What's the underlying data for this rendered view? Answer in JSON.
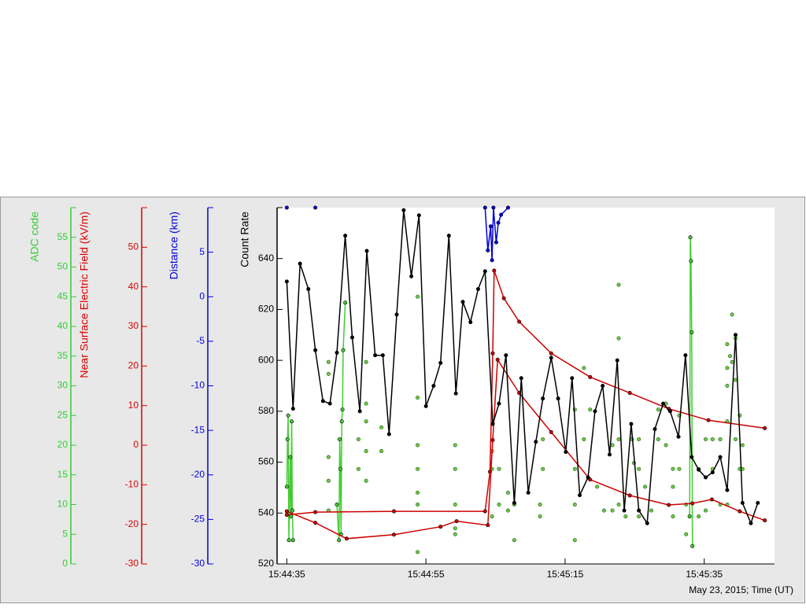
{
  "chart_data": {
    "type": "multi-axis",
    "xlabel": "May 23, 2015; Time (UT)",
    "xlim": [
      -1.4,
      70.1
    ],
    "xticks": [
      {
        "value": 0,
        "label": "15:44:35"
      },
      {
        "value": 20,
        "label": "15:44:55"
      },
      {
        "value": 40,
        "label": "15:45:15"
      },
      {
        "value": 60,
        "label": "15:45:35"
      }
    ],
    "axes": [
      {
        "label": "ADC code",
        "color": "#33cc33",
        "ylim": [
          0,
          60
        ],
        "yticks": [
          0,
          5,
          10,
          15,
          20,
          25,
          30,
          35,
          40,
          45,
          50,
          55
        ]
      },
      {
        "label": "Near Surface Electric Field (kV/m)",
        "color": "#dd0000",
        "ylim": [
          -30,
          60
        ],
        "yticks": [
          -30,
          -20,
          -10,
          0,
          10,
          20,
          30,
          40,
          50
        ]
      },
      {
        "label": "Distance (km)",
        "color": "#0000dd",
        "ylim": [
          -30,
          10
        ],
        "yticks": [
          -30,
          -25,
          -20,
          -15,
          -10,
          -5,
          0,
          5
        ]
      },
      {
        "label": "Count Rate",
        "color": "#000000",
        "ylim": [
          520,
          660
        ],
        "yticks": [
          520,
          540,
          560,
          580,
          600,
          620,
          640
        ]
      }
    ],
    "series": [
      {
        "axis": 0,
        "type": "scatter",
        "color": "#66cc44",
        "x": [
          6.0,
          6.0,
          6.0,
          6.0,
          6.0,
          10.3,
          10.3,
          11.4,
          11.4,
          11.4,
          11.4,
          11.4,
          13.6,
          13.6,
          18.8,
          18.8,
          18.8,
          18.8,
          18.8,
          18.8,
          18.8,
          24.2,
          24.2,
          24.2,
          24.2,
          24.2,
          29.5,
          29.5,
          29.5,
          30.5,
          30.5,
          31.8,
          31.8,
          32.7,
          32.7,
          36.4,
          36.4,
          36.8,
          36.8,
          41.4,
          41.4,
          41.4,
          41.4,
          42.7,
          42.7,
          43.6,
          44.6,
          45.6,
          46.8,
          46.8,
          47.7,
          47.7,
          47.7,
          47.7,
          48.7,
          49.6,
          49.9,
          50.6,
          50.6,
          50.6,
          51.5,
          52.4,
          53.4,
          53.4,
          54.5,
          54.5,
          55.5,
          55.5,
          55.5,
          56.4,
          56.4,
          57.4,
          57.4,
          59.2,
          59.2,
          60.2,
          60.2,
          61.2,
          61.2,
          62.3,
          62.3,
          63.3,
          63.3,
          63.3,
          63.3,
          63.3,
          63.7,
          64.0,
          64.0,
          64.5,
          64.5,
          64.5,
          65.1,
          65.1,
          65.5,
          65.5
        ],
        "values": [
          34,
          32,
          18,
          14,
          9,
          21,
          16,
          34,
          27,
          24,
          19,
          14,
          23,
          19,
          45,
          28,
          20,
          16,
          12,
          2,
          10,
          20,
          16,
          10,
          6,
          5,
          19,
          16,
          8,
          16,
          10,
          12,
          9,
          10,
          4,
          10,
          8,
          21,
          16,
          26,
          16,
          10,
          4,
          33,
          21,
          26,
          13,
          9,
          20,
          9,
          47,
          38,
          21,
          10,
          8,
          21,
          17,
          21,
          16,
          8,
          13,
          9,
          26,
          21,
          27,
          20,
          16,
          13,
          8,
          25,
          16,
          10,
          5,
          16,
          8,
          21,
          9,
          21,
          16,
          21,
          10,
          37,
          33,
          30,
          24,
          10,
          35,
          42,
          34,
          38,
          31,
          21,
          25,
          16,
          20,
          16
        ]
      },
      {
        "axis": 0,
        "type": "line",
        "color": "#44cc33",
        "x": [
          0,
          0.1,
          0.2,
          0.3,
          0.5,
          0.6,
          0.7,
          0.8,
          0.9,
          4,
          7.2,
          7.5,
          7.6,
          7.7,
          7.8,
          7.9,
          8.0,
          8.1,
          8.4,
          33,
          57.9,
          58.0,
          58.1,
          58.2,
          58.3
        ],
        "values": [
          13,
          21,
          25,
          4,
          18,
          8,
          24,
          9,
          4,
          null,
          10,
          4,
          21,
          16,
          5,
          24,
          26,
          36,
          44,
          null,
          8,
          55,
          51,
          39,
          3
        ]
      },
      {
        "axis": 1,
        "type": "line",
        "color": "#cc0000",
        "x": [
          0,
          4.1,
          15.4,
          28.5,
          29.2,
          29.6,
          29.8,
          31.2,
          33.4,
          38.0,
          43.6,
          49.3,
          54.9,
          60.6,
          68.7
        ],
        "values": [
          -17.6,
          -16.9,
          -16.7,
          -16.7,
          -6.7,
          23.2,
          44.1,
          37.1,
          31.2,
          23.2,
          17.2,
          13.2,
          9.2,
          6.3,
          4.3
        ]
      },
      {
        "axis": 1,
        "type": "line",
        "color": "#cc0000",
        "x": [
          0,
          4.1,
          8.6,
          15.4,
          22.1,
          24.4,
          28.9,
          29.6,
          30.3,
          33.4,
          38.0,
          43.6,
          49.3,
          54.9,
          58.3,
          61.1,
          65.1,
          68.7
        ],
        "values": [
          -16.7,
          -19.6,
          -23.6,
          -22.6,
          -20.6,
          -19.2,
          -20.2,
          1.3,
          21.6,
          13.2,
          3.3,
          -8.7,
          -12.7,
          -15.1,
          -14.7,
          -13.7,
          -16.7,
          -19.0
        ]
      },
      {
        "axis": 2,
        "type": "line",
        "color": "#0000dd",
        "x": [
          0,
          2,
          4.1,
          16,
          28.5,
          28.9,
          29.3,
          29.5,
          29.7,
          30.1,
          30.4,
          30.8,
          31.8
        ],
        "values": [
          10,
          null,
          10,
          null,
          10,
          5.2,
          7.9,
          4.1,
          10,
          6.1,
          8.3,
          9.2,
          10
        ]
      },
      {
        "axis": 3,
        "type": "line",
        "color": "#000000",
        "x": [
          0,
          0.9,
          1.9,
          3.1,
          4.1,
          5.2,
          6.2,
          7.2,
          8.4,
          9.4,
          10.5,
          11.5,
          12.7,
          13.8,
          14.7,
          15.8,
          16.8,
          17.9,
          19.0,
          20.0,
          21.1,
          22.1,
          23.3,
          24.3,
          25.3,
          26.4,
          27.5,
          28.5,
          29.6,
          30.5,
          31.5,
          32.7,
          33.7,
          34.7,
          35.8,
          36.8,
          38.0,
          39.0,
          40.1,
          41.0,
          42.1,
          43.3,
          44.3,
          45.4,
          46.4,
          47.5,
          48.5,
          49.5,
          50.6,
          51.8,
          52.9,
          54.1,
          55.1,
          56.3,
          57.3,
          58.2,
          59.2,
          60.2,
          61.2,
          62.3,
          63.3,
          64.5,
          65.5,
          66.7,
          67.7
        ],
        "values": [
          631,
          581,
          638,
          628,
          604,
          584,
          583,
          603,
          649,
          609,
          580,
          643,
          602,
          602,
          571,
          618,
          659,
          633,
          657,
          582,
          590,
          599,
          649,
          587,
          623,
          615,
          628,
          635,
          575,
          583,
          602,
          544,
          593,
          548,
          568,
          585,
          601,
          585,
          564,
          593,
          547,
          554,
          580,
          590,
          563,
          600,
          541,
          575,
          541,
          536,
          573,
          583,
          580,
          570,
          602,
          562,
          557,
          554,
          556,
          562,
          549,
          610,
          544,
          536,
          544
        ]
      }
    ]
  }
}
